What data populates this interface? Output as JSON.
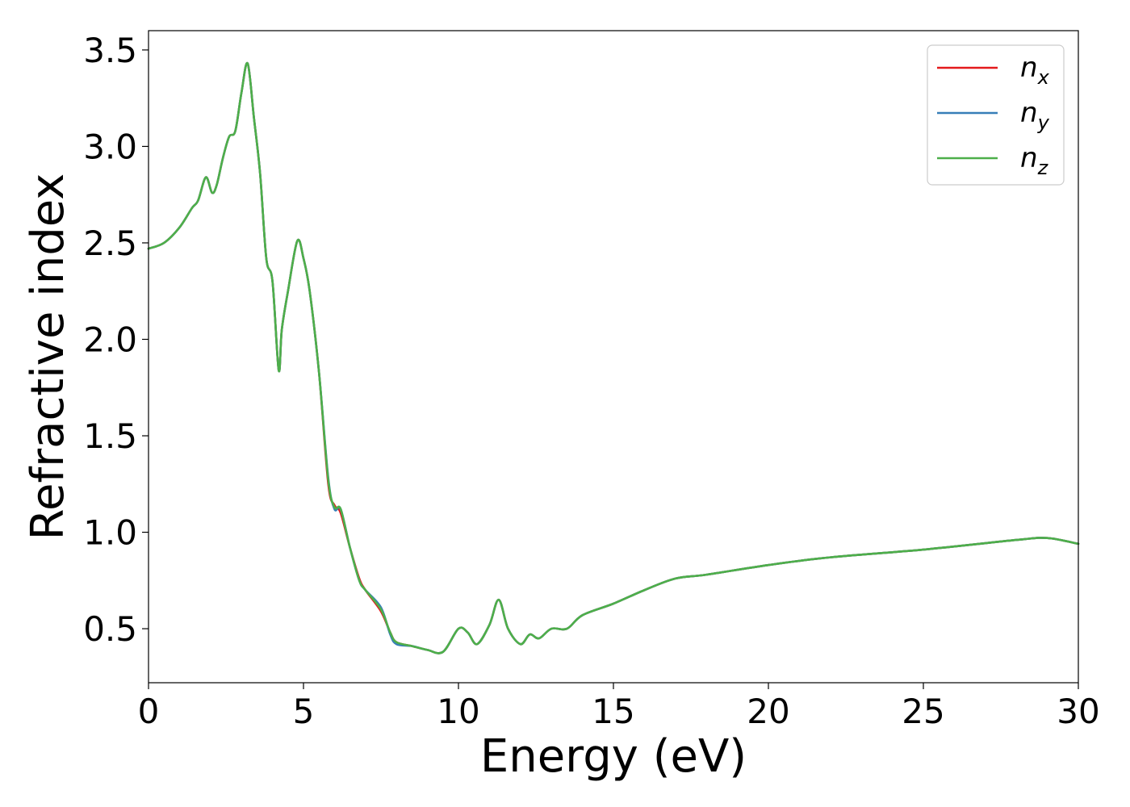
{
  "chart_data": {
    "type": "line",
    "title": "",
    "xlabel": "Energy (eV)",
    "ylabel": "Refractive index",
    "xlim": [
      0,
      30
    ],
    "ylim": [
      0.22,
      3.6
    ],
    "xticks": [
      0,
      5,
      10,
      15,
      20,
      25,
      30
    ],
    "xtick_labels": [
      "0",
      "5",
      "10",
      "15",
      "20",
      "25",
      "30"
    ],
    "yticks": [
      0.5,
      1.0,
      1.5,
      2.0,
      2.5,
      3.0,
      3.5
    ],
    "ytick_labels": [
      "0.5",
      "1.0",
      "1.5",
      "2.0",
      "2.5",
      "3.0",
      "3.5"
    ],
    "grid": false,
    "legend_position": "top-right",
    "series": [
      {
        "name": "n_x",
        "label_base": "n",
        "label_sub": "x",
        "color": "#e41a1c",
        "x": [
          0,
          0.5,
          1.0,
          1.4,
          1.6,
          1.85,
          2.05,
          2.2,
          2.4,
          2.6,
          2.8,
          3.0,
          3.2,
          3.4,
          3.6,
          3.8,
          4.0,
          4.2,
          4.3,
          4.5,
          4.8,
          5.0,
          5.2,
          5.5,
          5.8,
          6.0,
          6.2,
          6.5,
          6.8,
          7.0,
          7.5,
          7.8,
          8.0,
          8.5,
          9.0,
          9.5,
          10.0,
          10.3,
          10.6,
          11.0,
          11.3,
          11.6,
          12.0,
          12.3,
          12.6,
          13.0,
          13.5,
          14.0,
          15.0,
          16.0,
          17.0,
          18.0,
          20.0,
          22.0,
          25.0,
          28.0,
          29.0,
          30.0
        ],
        "y": [
          2.47,
          2.5,
          2.58,
          2.68,
          2.72,
          2.84,
          2.76,
          2.8,
          2.94,
          3.05,
          3.08,
          3.28,
          3.43,
          3.15,
          2.86,
          2.42,
          2.3,
          1.84,
          2.05,
          2.25,
          2.51,
          2.42,
          2.25,
          1.83,
          1.25,
          1.14,
          1.1,
          0.92,
          0.76,
          0.7,
          0.59,
          0.48,
          0.43,
          0.41,
          0.39,
          0.38,
          0.5,
          0.48,
          0.42,
          0.52,
          0.65,
          0.5,
          0.42,
          0.47,
          0.45,
          0.5,
          0.5,
          0.57,
          0.63,
          0.7,
          0.76,
          0.78,
          0.83,
          0.87,
          0.91,
          0.96,
          0.97,
          0.94
        ]
      },
      {
        "name": "n_y",
        "label_base": "n",
        "label_sub": "y",
        "color": "#377eb8",
        "x": [
          0,
          0.5,
          1.0,
          1.4,
          1.6,
          1.85,
          2.05,
          2.2,
          2.4,
          2.6,
          2.8,
          3.0,
          3.2,
          3.4,
          3.6,
          3.8,
          4.0,
          4.2,
          4.3,
          4.5,
          4.8,
          5.0,
          5.2,
          5.5,
          5.8,
          6.0,
          6.2,
          6.5,
          6.8,
          7.0,
          7.5,
          7.8,
          8.0,
          8.5,
          9.0,
          9.5,
          10.0,
          10.3,
          10.6,
          11.0,
          11.3,
          11.6,
          12.0,
          12.3,
          12.6,
          13.0,
          13.5,
          14.0,
          15.0,
          16.0,
          17.0,
          18.0,
          20.0,
          22.0,
          25.0,
          28.0,
          29.0,
          30.0
        ],
        "y": [
          2.47,
          2.5,
          2.58,
          2.68,
          2.72,
          2.84,
          2.76,
          2.8,
          2.94,
          3.05,
          3.08,
          3.28,
          3.43,
          3.15,
          2.86,
          2.42,
          2.3,
          1.84,
          2.05,
          2.25,
          2.51,
          2.42,
          2.25,
          1.83,
          1.28,
          1.12,
          1.12,
          0.92,
          0.75,
          0.7,
          0.61,
          0.47,
          0.42,
          0.41,
          0.39,
          0.38,
          0.5,
          0.48,
          0.42,
          0.52,
          0.65,
          0.5,
          0.42,
          0.47,
          0.45,
          0.5,
          0.5,
          0.57,
          0.63,
          0.7,
          0.76,
          0.78,
          0.83,
          0.87,
          0.91,
          0.96,
          0.97,
          0.94
        ]
      },
      {
        "name": "n_z",
        "label_base": "n",
        "label_sub": "z",
        "color": "#4daf4a",
        "x": [
          0,
          0.5,
          1.0,
          1.4,
          1.6,
          1.85,
          2.05,
          2.2,
          2.4,
          2.6,
          2.8,
          3.0,
          3.2,
          3.4,
          3.6,
          3.8,
          4.0,
          4.2,
          4.3,
          4.5,
          4.8,
          5.0,
          5.2,
          5.5,
          5.8,
          6.0,
          6.2,
          6.5,
          6.8,
          7.0,
          7.5,
          7.8,
          8.0,
          8.5,
          9.0,
          9.5,
          10.0,
          10.3,
          10.6,
          11.0,
          11.3,
          11.6,
          12.0,
          12.3,
          12.6,
          13.0,
          13.5,
          14.0,
          15.0,
          16.0,
          17.0,
          18.0,
          20.0,
          22.0,
          25.0,
          28.0,
          29.0,
          30.0
        ],
        "y": [
          2.47,
          2.5,
          2.58,
          2.68,
          2.72,
          2.84,
          2.76,
          2.8,
          2.94,
          3.05,
          3.08,
          3.28,
          3.43,
          3.15,
          2.86,
          2.42,
          2.3,
          1.84,
          2.05,
          2.25,
          2.51,
          2.42,
          2.25,
          1.83,
          1.27,
          1.13,
          1.12,
          0.92,
          0.75,
          0.7,
          0.6,
          0.48,
          0.43,
          0.41,
          0.39,
          0.38,
          0.5,
          0.48,
          0.42,
          0.52,
          0.65,
          0.5,
          0.42,
          0.47,
          0.45,
          0.5,
          0.5,
          0.57,
          0.63,
          0.7,
          0.76,
          0.78,
          0.83,
          0.87,
          0.91,
          0.96,
          0.97,
          0.94
        ]
      }
    ]
  }
}
